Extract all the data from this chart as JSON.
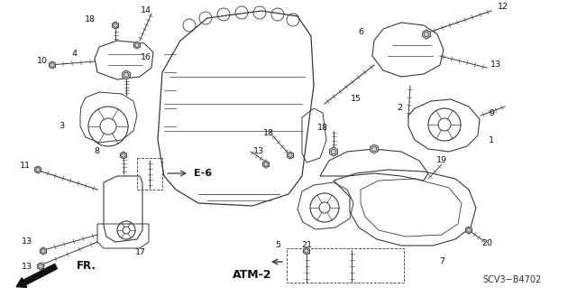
{
  "bg_color": "#ffffff",
  "fig_width": 6.4,
  "fig_height": 3.19,
  "diagram_code": "SCV3−B4702",
  "line_color": "#3a3a3a",
  "label_fontsize": 6.8,
  "annotation_fontsize": 8.0
}
